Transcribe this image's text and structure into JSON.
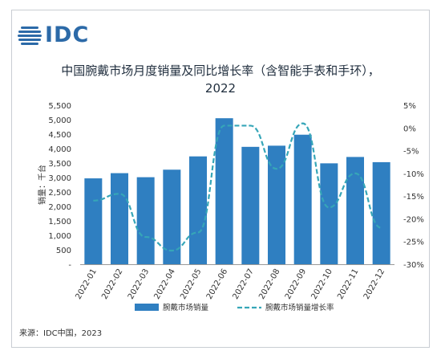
{
  "brand": {
    "logo_text": "IDC"
  },
  "chart_data": {
    "type": "bar+line",
    "title_line1": "中国腕戴市场月度销量及同比增长率（含智能手表和手环），",
    "title_line2": "2022",
    "categories": [
      "2022-01",
      "2022-02",
      "2022-03",
      "2022-04",
      "2022-05",
      "2022-06",
      "2022-07",
      "2022-08",
      "2022-09",
      "2022-10",
      "2022-11",
      "2022-12"
    ],
    "series": [
      {
        "name": "腕戴市场销量",
        "type": "bar",
        "axis": "left",
        "color": "#2f7fc1",
        "values": [
          2970,
          3150,
          3010,
          3270,
          3730,
          5050,
          4060,
          4100,
          4480,
          3490,
          3710,
          3530
        ]
      },
      {
        "name": "腕戴市场销量增长率",
        "type": "line",
        "axis": "right",
        "color": "#36a6b8",
        "values": [
          -16,
          -14.5,
          -24,
          -27,
          -23,
          0.5,
          0.5,
          -9,
          1,
          -17.5,
          -10,
          -22
        ]
      }
    ],
    "ylabel_left": "销量：千台",
    "left_ticks": [
      "-",
      "500",
      "1,000",
      "1,500",
      "2,000",
      "2,500",
      "3,000",
      "3,500",
      "4,000",
      "4,500",
      "5,000",
      "5,500"
    ],
    "ylim_left": [
      0,
      5500
    ],
    "right_ticks": [
      "5%",
      "0%",
      "-5%",
      "-10%",
      "-15%",
      "-20%",
      "-25%",
      "-30%"
    ],
    "ylim_right": [
      -30,
      5
    ],
    "grid": false,
    "legend_position": "bottom"
  },
  "source_text": "来源：IDC中国，2023"
}
